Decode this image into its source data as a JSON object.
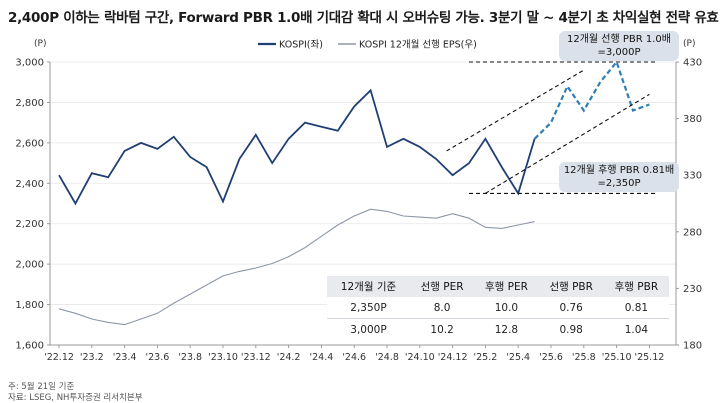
{
  "title": "2,400P 이하는 락바텀 구간, Forward PBR 1.0배 기대감 확대 시 오버슈팅 가능. 3분기 말 ~ 4분기 초 차익실현 전략 유효",
  "notes": [
    "주: 5월 21일 기준",
    "자료: LSEG, NH투자증권 리서치본부"
  ],
  "callouts": {
    "top": [
      "12개월 선행 PBR 1.0배",
      "=3,000P"
    ],
    "bottom": [
      "12개월 후행 PBR 0.81배",
      "=2,350P"
    ]
  },
  "table": {
    "headers": [
      "12개월 기준",
      "선행 PER",
      "후행 PER",
      "선행 PBR",
      "후행 PBR"
    ],
    "rows": [
      [
        "2,350P",
        "8.0",
        "10.0",
        "0.76",
        "0.81"
      ],
      [
        "3,000P",
        "10.2",
        "12.8",
        "0.98",
        "1.04"
      ]
    ]
  },
  "colors": {
    "kospi": "#1f3f73",
    "eps": "#8d97a6",
    "forecast": "#2f7fb3",
    "guide": "#111111",
    "callout_bg": "#dbe1ea"
  },
  "chart_data": {
    "type": "line",
    "x_unit": "month (YY.M)",
    "xtick_labels": [
      "'22.12",
      "'23.2",
      "'23.4",
      "'23.6",
      "'23.8",
      "'23.10",
      "'23.12",
      "'24.2",
      "'24.4",
      "'24.6",
      "'24.8",
      "'24.10",
      "'24.12",
      "'25.2",
      "'25.4",
      "'25.6",
      "'25.8",
      "'25.10",
      "'25.12"
    ],
    "y_left": {
      "label": "(P)",
      "range": [
        1600,
        3000
      ],
      "ticks": [
        1600,
        1800,
        2000,
        2200,
        2400,
        2600,
        2800,
        3000
      ],
      "tick_labels": [
        "1,600",
        "1,800",
        "2,000",
        "2,200",
        "2,400",
        "2,600",
        "2,800",
        "3,000"
      ]
    },
    "y_right": {
      "label": "(P)",
      "range": [
        180,
        430
      ],
      "ticks": [
        180,
        230,
        280,
        330,
        380,
        430
      ],
      "tick_labels": [
        "180",
        "230",
        "280",
        "330",
        "380",
        "430"
      ]
    },
    "legend": {
      "position": "top-center",
      "entries": [
        "KOSPI(좌)",
        "KOSPI 12개월 선행 EPS(우)"
      ]
    },
    "series": [
      {
        "name": "KOSPI(좌)",
        "axis": "left",
        "x": [
          "22.12",
          "23.01",
          "23.02",
          "23.03",
          "23.04",
          "23.05",
          "23.06",
          "23.07",
          "23.08",
          "23.09",
          "23.10",
          "23.11",
          "23.12",
          "24.01",
          "24.02",
          "24.03",
          "24.04",
          "24.05",
          "24.06",
          "24.07",
          "24.08",
          "24.09",
          "24.10",
          "24.11",
          "24.12",
          "25.01",
          "25.02",
          "25.03",
          "25.04",
          "25.05"
        ],
        "y": [
          2440,
          2300,
          2450,
          2430,
          2560,
          2600,
          2570,
          2630,
          2530,
          2480,
          2310,
          2520,
          2640,
          2500,
          2620,
          2700,
          2680,
          2660,
          2780,
          2860,
          2580,
          2620,
          2580,
          2520,
          2440,
          2500,
          2620,
          2480,
          2350,
          2620
        ]
      },
      {
        "name": "KOSPI 12개월 선행 EPS(우)",
        "axis": "right",
        "x": [
          "22.12",
          "23.01",
          "23.02",
          "23.03",
          "23.04",
          "23.05",
          "23.06",
          "23.07",
          "23.08",
          "23.09",
          "23.10",
          "23.11",
          "23.12",
          "24.01",
          "24.02",
          "24.03",
          "24.04",
          "24.05",
          "24.06",
          "24.07",
          "24.08",
          "24.09",
          "24.10",
          "24.11",
          "24.12",
          "25.01",
          "25.02",
          "25.03",
          "25.04",
          "25.05"
        ],
        "y": [
          212,
          208,
          203,
          200,
          198,
          203,
          208,
          217,
          225,
          233,
          241,
          245,
          248,
          252,
          258,
          266,
          276,
          286,
          294,
          300,
          298,
          294,
          293,
          292,
          296,
          292,
          284,
          283,
          286,
          289
        ]
      },
      {
        "name": "",
        "axis": "left",
        "style": "dashed",
        "x": [
          "25.05",
          "25.06",
          "25.07",
          "25.08",
          "25.09",
          "25.10",
          "25.11",
          "25.12"
        ],
        "y": [
          2620,
          2700,
          2880,
          2760,
          2900,
          3000,
          2760,
          2790
        ]
      }
    ],
    "reference_lines": [
      {
        "type": "horizontal",
        "value": 3000,
        "from": "25.01",
        "to": "25.12"
      },
      {
        "type": "horizontal",
        "value": 2350,
        "from": "25.01",
        "to": "25.12"
      }
    ],
    "annotations": [
      "12개월 선행 PBR 1.0배 =3,000P",
      "12개월 후행 PBR 0.81배 =2,350P"
    ]
  }
}
